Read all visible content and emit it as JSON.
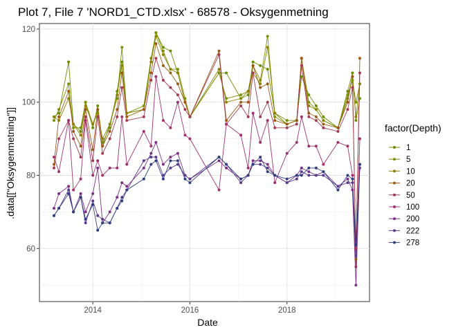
{
  "chart_data": {
    "type": "line",
    "title": "Plot 7, File 7 'NORD1_CTD.xlsx' - 68578  -  Oksygenmetning",
    "xlabel": "Date",
    "ylabel": ".data[[\"Oksygenmetning\"]]",
    "x_ticks": [
      "2014",
      "2016",
      "2018"
    ],
    "x_tick_values": [
      2014.0,
      2016.0,
      2018.0
    ],
    "y_ticks": [
      "60",
      "80",
      "100",
      "120"
    ],
    "y_tick_values": [
      60,
      80,
      100,
      120
    ],
    "xlim": [
      2012.9,
      2019.7
    ],
    "ylim": [
      45.5,
      121.5
    ],
    "grid": true,
    "legend": {
      "title": "factor(Depth)",
      "position": "right"
    },
    "series": [
      {
        "name": "1",
        "color": "#6b8e00",
        "x": [
          2013.2,
          2013.3,
          2013.5,
          2013.6,
          2013.75,
          2013.85,
          2014.0,
          2014.1,
          2014.2,
          2014.35,
          2014.5,
          2014.6,
          2014.7,
          2015.05,
          2015.2,
          2015.3,
          2015.45,
          2015.6,
          2015.75,
          2015.9,
          2016.0,
          2016.6,
          2016.75,
          2017.05,
          2017.2,
          2017.3,
          2017.45,
          2017.6,
          2017.75,
          2018.0,
          2018.2,
          2018.3,
          2018.45,
          2018.6,
          2018.75,
          2019.05,
          2019.25,
          2019.35,
          2019.42,
          2019.5
        ],
        "y": [
          96,
          97,
          111,
          94,
          92,
          100,
          93,
          99,
          89,
          93,
          103,
          111,
          97,
          98,
          111,
          119,
          115,
          114,
          108,
          100,
          96,
          108,
          108,
          101,
          102,
          111,
          110,
          109,
          97,
          95,
          95,
          107,
          102,
          99,
          96,
          93,
          103,
          108,
          95,
          101
        ]
      },
      {
        "name": "5",
        "color": "#7d8f00",
        "x": [
          2013.2,
          2013.3,
          2013.5,
          2013.6,
          2013.75,
          2013.85,
          2014.0,
          2014.1,
          2014.2,
          2014.35,
          2014.5,
          2014.6,
          2014.7,
          2015.05,
          2015.2,
          2015.3,
          2015.45,
          2015.6,
          2015.75,
          2015.9,
          2016.0,
          2016.6,
          2016.75,
          2017.05,
          2017.2,
          2017.3,
          2017.45,
          2017.6,
          2017.75,
          2018.0,
          2018.2,
          2018.3,
          2018.45,
          2018.6,
          2018.75,
          2019.05,
          2019.25,
          2019.35,
          2019.42,
          2019.5
        ],
        "y": [
          95,
          98,
          105,
          93,
          93,
          100,
          94,
          98,
          88,
          94,
          101,
          115,
          97,
          99,
          112,
          119,
          114,
          109,
          109,
          101,
          96,
          108,
          101,
          102,
          103,
          110,
          106,
          118,
          96,
          94,
          95,
          112,
          100,
          98,
          95,
          93,
          102,
          106,
          100,
          105
        ]
      },
      {
        "name": "10",
        "color": "#8a8200",
        "x": [
          2013.2,
          2013.3,
          2013.5,
          2013.6,
          2013.75,
          2013.85,
          2014.0,
          2014.1,
          2014.2,
          2014.35,
          2014.5,
          2014.6,
          2014.7,
          2015.05,
          2015.2,
          2015.3,
          2015.45,
          2015.6,
          2015.75,
          2015.9,
          2016.0,
          2016.6,
          2016.75,
          2017.05,
          2017.2,
          2017.3,
          2017.45,
          2017.6,
          2017.75,
          2018.0,
          2018.2,
          2018.3,
          2018.45,
          2018.6,
          2018.75,
          2019.05,
          2019.25,
          2019.35,
          2019.42,
          2019.5
        ],
        "y": [
          96,
          95,
          101,
          94,
          91,
          99,
          94,
          97,
          90,
          94,
          102,
          110,
          97,
          98,
          111,
          118,
          113,
          109,
          108,
          100,
          96,
          109,
          100,
          101,
          103,
          108,
          105,
          115,
          97,
          94,
          95,
          112,
          99,
          98,
          95,
          93,
          101,
          107,
          96,
          105
        ]
      },
      {
        "name": "20",
        "color": "#9c5a14",
        "x": [
          2013.2,
          2013.3,
          2013.5,
          2013.6,
          2013.75,
          2013.85,
          2014.0,
          2014.1,
          2014.2,
          2014.35,
          2014.5,
          2014.6,
          2014.7,
          2015.05,
          2015.2,
          2015.3,
          2015.45,
          2015.6,
          2015.75,
          2015.9,
          2016.0,
          2016.6,
          2016.75,
          2017.05,
          2017.2,
          2017.3,
          2017.45,
          2017.6,
          2017.75,
          2018.0,
          2018.2,
          2018.3,
          2018.45,
          2018.6,
          2018.75,
          2019.05,
          2019.25,
          2019.35,
          2019.42,
          2019.5
        ],
        "y": [
          83,
          96,
          103,
          92,
          88,
          98,
          87,
          98,
          88,
          92,
          98,
          108,
          96,
          98,
          108,
          116,
          110,
          108,
          105,
          100,
          96,
          114,
          95,
          100,
          100,
          110,
          104,
          105,
          95,
          94,
          95,
          112,
          97,
          96,
          94,
          93,
          100,
          107,
          57,
          112
        ]
      },
      {
        "name": "50",
        "color": "#a33a4e",
        "x": [
          2013.2,
          2013.3,
          2013.5,
          2013.6,
          2013.75,
          2013.85,
          2014.0,
          2014.1,
          2014.2,
          2014.35,
          2014.5,
          2014.6,
          2014.7,
          2015.05,
          2015.2,
          2015.3,
          2015.45,
          2015.6,
          2015.75,
          2015.9,
          2016.0,
          2016.6,
          2016.75,
          2017.05,
          2017.2,
          2017.3,
          2017.45,
          2017.6,
          2017.75,
          2018.0,
          2018.2,
          2018.3,
          2018.45,
          2018.6,
          2018.75,
          2019.05,
          2019.25,
          2019.35,
          2019.42,
          2019.5
        ],
        "y": [
          82,
          90,
          95,
          90,
          85,
          96,
          84,
          96,
          86,
          90,
          96,
          104,
          95,
          96,
          106,
          112,
          106,
          104,
          102,
          98,
          96,
          113,
          94,
          99,
          96,
          108,
          96,
          100,
          93,
          93,
          94,
          110,
          96,
          95,
          93,
          92,
          98,
          104,
          60,
          108
        ]
      },
      {
        "name": "100",
        "color": "#a0306e",
        "x": [
          2013.2,
          2013.3,
          2013.5,
          2013.6,
          2013.75,
          2013.85,
          2014.0,
          2014.1,
          2014.2,
          2014.35,
          2014.5,
          2014.6,
          2014.7,
          2015.05,
          2015.2,
          2015.3,
          2015.45,
          2015.6,
          2015.75,
          2015.9,
          2016.0,
          2016.6,
          2016.75,
          2017.05,
          2017.2,
          2017.3,
          2017.45,
          2017.6,
          2017.75,
          2018.0,
          2018.2,
          2018.3,
          2018.45,
          2018.6,
          2018.75,
          2019.05,
          2019.25,
          2019.35,
          2019.42,
          2019.5
        ],
        "y": [
          85,
          81,
          95,
          76,
          79,
          95,
          80,
          84,
          80,
          82,
          82,
          96,
          83,
          92,
          88,
          107,
          95,
          93,
          100,
          91,
          90,
          76,
          94,
          91,
          82,
          97,
          89,
          95,
          78,
          86,
          89,
          96,
          88,
          88,
          83,
          89,
          88,
          80,
          55,
          90
        ]
      },
      {
        "name": "200",
        "color": "#7b2f86",
        "x": [
          2013.2,
          2013.3,
          2013.5,
          2013.6,
          2013.75,
          2013.85,
          2014.0,
          2014.1,
          2014.2,
          2014.35,
          2014.5,
          2014.6,
          2014.7,
          2015.05,
          2015.2,
          2015.3,
          2015.45,
          2015.6,
          2015.75,
          2015.9,
          2016.0,
          2016.6,
          2016.75,
          2017.05,
          2017.2,
          2017.3,
          2017.45,
          2017.6,
          2017.75,
          2018.0,
          2018.2,
          2018.3,
          2018.45,
          2018.6,
          2018.75,
          2019.05,
          2019.25,
          2019.35,
          2019.42,
          2019.5
        ],
        "y": [
          71,
          75,
          77,
          70,
          75,
          70,
          75,
          82,
          67,
          70,
          74,
          78,
          77,
          82,
          86,
          89,
          83,
          85,
          86,
          80,
          79,
          84,
          82,
          79,
          80,
          84,
          84,
          83,
          80,
          78,
          80,
          82,
          81,
          80,
          81,
          77,
          79,
          76,
          50,
          83
        ]
      },
      {
        "name": "222",
        "color": "#5b3a8c",
        "x": [
          2013.2,
          2013.3,
          2013.5,
          2013.6,
          2013.75,
          2013.85,
          2014.0,
          2014.1,
          2014.2,
          2014.35,
          2014.5,
          2014.6,
          2014.7,
          2015.05,
          2015.2,
          2015.3,
          2015.45,
          2015.6,
          2015.75,
          2015.9,
          2016.0,
          2016.6,
          2016.75,
          2017.05,
          2017.2,
          2017.3,
          2017.45,
          2017.6,
          2017.75,
          2018.0,
          2018.2,
          2018.3,
          2018.45,
          2018.6,
          2018.75,
          2019.05,
          2019.25,
          2019.35,
          2019.42,
          2019.5
        ],
        "y": [
          69,
          71,
          76,
          70,
          74,
          67,
          73,
          69,
          68,
          67,
          71,
          74,
          76,
          84,
          85,
          85,
          80,
          82,
          83,
          80,
          79,
          85,
          83,
          78,
          80,
          83,
          83,
          82,
          80,
          78,
          79,
          81,
          80,
          80,
          80,
          77,
          78,
          78,
          58,
          82
        ]
      },
      {
        "name": "278",
        "color": "#2e3e80",
        "x": [
          2013.2,
          2013.3,
          2013.5,
          2013.6,
          2013.75,
          2013.85,
          2014.0,
          2014.1,
          2014.2,
          2014.35,
          2014.5,
          2014.6,
          2014.7,
          2015.05,
          2015.2,
          2015.3,
          2015.45,
          2015.6,
          2015.75,
          2015.9,
          2016.0,
          2016.6,
          2016.75,
          2017.05,
          2017.2,
          2017.3,
          2017.45,
          2017.6,
          2017.75,
          2018.0,
          2018.2,
          2018.3,
          2018.45,
          2018.6,
          2018.75,
          2019.05,
          2019.25,
          2019.35,
          2019.42,
          2019.5
        ],
        "y": [
          69,
          71,
          75,
          70,
          74,
          68,
          72,
          65,
          67,
          67,
          71,
          73,
          76,
          79,
          83,
          84,
          79,
          84,
          84,
          79,
          78,
          85,
          83,
          79,
          80,
          83,
          85,
          81,
          80,
          79,
          80,
          80,
          82,
          82,
          81,
          76,
          80,
          79,
          61,
          83
        ]
      }
    ]
  }
}
